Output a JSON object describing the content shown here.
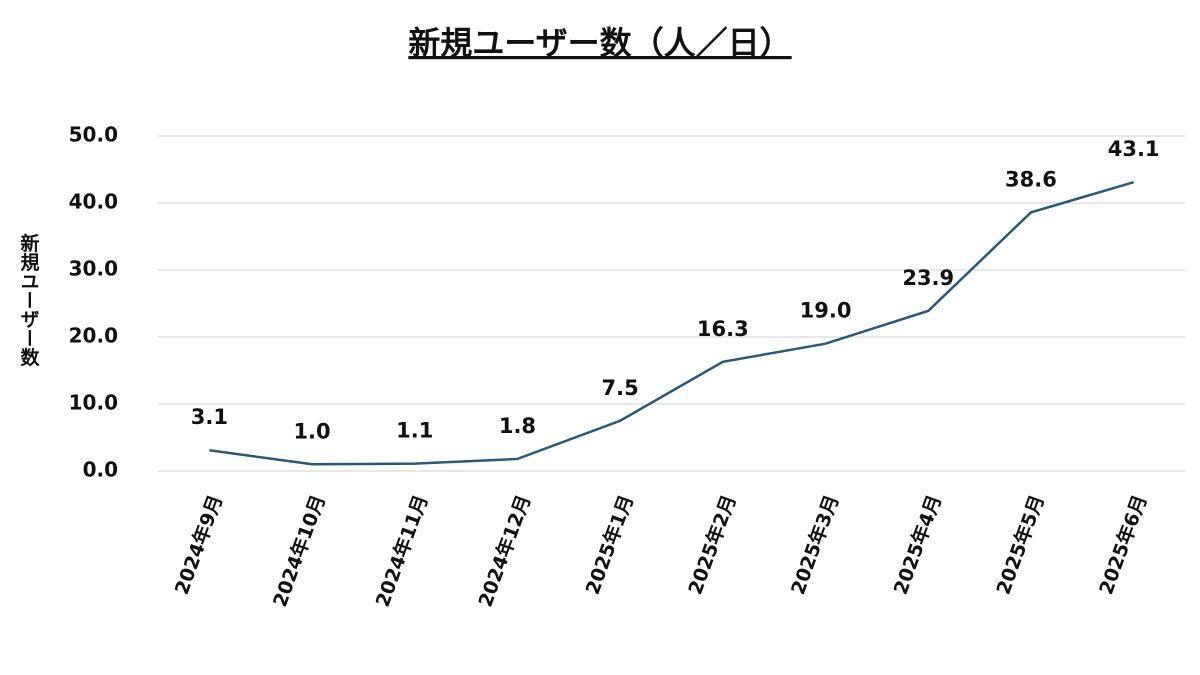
{
  "chart_data": {
    "type": "line",
    "title": "新規ユーザー数（人／日）",
    "y_label": "新規ユーザー数",
    "categories": [
      "2024年9月",
      "2024年10月",
      "2024年11月",
      "2024年12月",
      "2025年1月",
      "2025年2月",
      "2025年3月",
      "2025年4月",
      "2025年5月",
      "2025年6月"
    ],
    "series": [
      {
        "name": "新規ユーザー数",
        "color": "#2b5876",
        "values": [
          3.1,
          1.0,
          1.1,
          1.8,
          7.5,
          16.3,
          19.0,
          23.9,
          38.6,
          43.1
        ],
        "value_labels": [
          "3.1",
          "1.0",
          "1.1",
          "1.8",
          "7.5",
          "16.3",
          "19.0",
          "23.9",
          "38.6",
          "43.1"
        ]
      }
    ],
    "ylim": [
      0,
      50
    ],
    "yticks": [
      {
        "value": 0,
        "label": "0.0"
      },
      {
        "value": 10,
        "label": "10.0"
      },
      {
        "value": 20,
        "label": "20.0"
      },
      {
        "value": 30,
        "label": "30.0"
      },
      {
        "value": 40,
        "label": "40.0"
      },
      {
        "value": 50,
        "label": "50.0"
      }
    ],
    "grid": true
  }
}
